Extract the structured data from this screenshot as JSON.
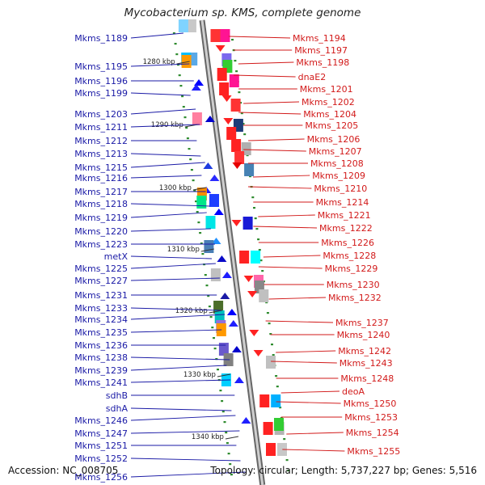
{
  "title": "Mycobacterium sp. KMS, complete genome",
  "footer": {
    "accession": "Accession: NC_008705",
    "summary": "Topology: circular; Length: 5,737,227 bp; Genes: 5,516"
  },
  "colors": {
    "left_label": "#1a1aa6",
    "right_label": "#d21a1a",
    "backbone": "#9a9a9a",
    "tick": "#2e8b2e"
  },
  "ticks": [
    "1280 kbp",
    "1290 kbp",
    "1300 kbp",
    "1310 kbp",
    "1320 kbp",
    "1330 kbp",
    "1340 kbp"
  ],
  "left_genes": [
    "Mkms_1189",
    "Mkms_1195",
    "Mkms_1196",
    "Mkms_1199",
    "Mkms_1203",
    "Mkms_1211",
    "Mkms_1212",
    "Mkms_1213",
    "Mkms_1215",
    "Mkms_1216",
    "Mkms_1217",
    "Mkms_1218",
    "Mkms_1219",
    "Mkms_1220",
    "Mkms_1223",
    "metX",
    "Mkms_1225",
    "Mkms_1227",
    "Mkms_1231",
    "Mkms_1233",
    "Mkms_1234",
    "Mkms_1235",
    "Mkms_1236",
    "Mkms_1238",
    "Mkms_1239",
    "Mkms_1241",
    "sdhB",
    "sdhA",
    "Mkms_1246",
    "Mkms_1247",
    "Mkms_1251",
    "Mkms_1252",
    "Mkms_1256"
  ],
  "right_genes": [
    "Mkms_1194",
    "Mkms_1197",
    "Mkms_1198",
    "dnaE2",
    "Mkms_1201",
    "Mkms_1202",
    "Mkms_1204",
    "Mkms_1205",
    "Mkms_1206",
    "Mkms_1207",
    "Mkms_1208",
    "Mkms_1209",
    "Mkms_1210",
    "Mkms_1214",
    "Mkms_1221",
    "Mkms_1222",
    "Mkms_1226",
    "Mkms_1228",
    "Mkms_1229",
    "Mkms_1230",
    "Mkms_1232",
    "Mkms_1237",
    "Mkms_1240",
    "Mkms_1242",
    "Mkms_1243",
    "Mkms_1248",
    "deoA",
    "Mkms_1250",
    "Mkms_1253",
    "Mkms_1254",
    "Mkms_1255"
  ]
}
